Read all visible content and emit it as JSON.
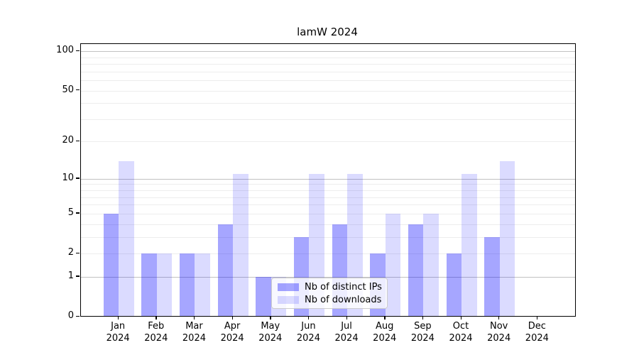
{
  "figure": {
    "title": "lamW 2024"
  },
  "chart_data": {
    "type": "bar",
    "title": "lamW 2024",
    "categories": [
      "Jan",
      "Feb",
      "Mar",
      "Apr",
      "May",
      "Jun",
      "Jul",
      "Aug",
      "Sep",
      "Oct",
      "Nov",
      "Dec"
    ],
    "year": "2024",
    "series": [
      {
        "name": "Nb of distinct IPs",
        "color": "rgba(0,0,255,0.35)",
        "values": [
          5,
          2,
          2,
          4,
          1,
          3,
          4,
          2,
          4,
          2,
          3,
          0
        ]
      },
      {
        "name": "Nb of downloads",
        "color": "rgba(0,0,255,0.14)",
        "values": [
          14,
          2,
          2,
          11,
          1,
          11,
          11,
          5,
          5,
          11,
          14,
          0
        ]
      }
    ],
    "yscale": "log1p",
    "yticks": [
      0,
      1,
      2,
      5,
      10,
      20,
      50,
      100
    ],
    "ylim": [
      0,
      114
    ],
    "grid": {
      "major_lines": [
        1,
        10,
        100
      ],
      "minor_lines": [
        2,
        3,
        4,
        5,
        6,
        7,
        8,
        9,
        20,
        30,
        40,
        50,
        60,
        70,
        80,
        90
      ],
      "major_color": "#c2c2c2",
      "minor_color": "#ededed"
    },
    "legend_position": "lower center, inside plot"
  }
}
